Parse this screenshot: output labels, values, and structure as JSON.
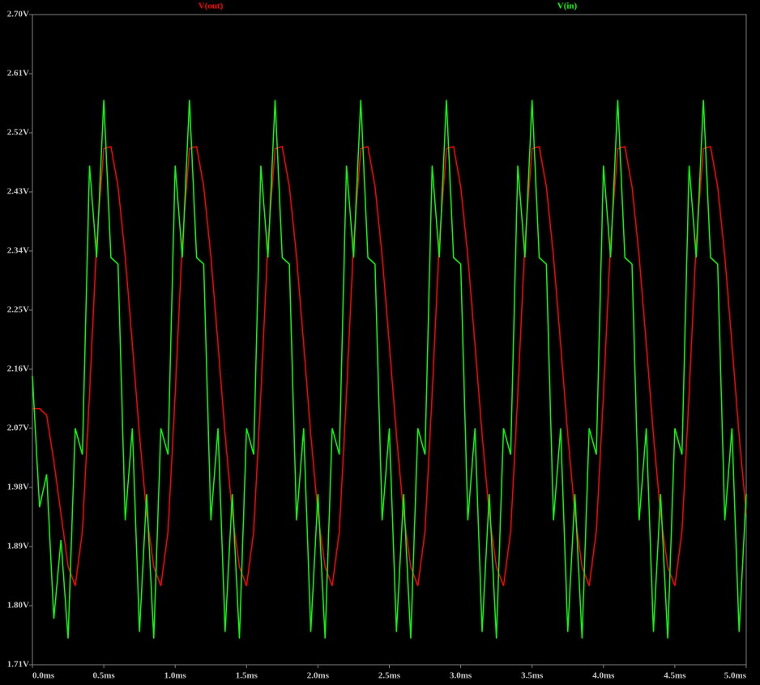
{
  "chart_data": {
    "type": "line",
    "x": [
      0,
      0.05,
      0.1,
      0.15,
      0.2,
      0.25,
      0.3,
      0.35,
      0.4,
      0.45,
      0.5,
      0.55,
      0.6,
      0.65,
      0.7,
      0.75,
      0.8,
      0.85,
      0.9,
      0.95,
      1,
      1.05,
      1.1,
      1.15,
      1.2,
      1.25,
      1.3,
      1.35,
      1.4,
      1.45,
      1.5,
      1.55,
      1.6,
      1.65,
      1.7,
      1.75,
      1.8,
      1.85,
      1.9,
      1.95,
      2,
      2.05,
      2.1,
      2.15,
      2.2,
      2.25,
      2.3,
      2.35,
      2.4,
      2.45,
      2.5,
      2.55,
      2.6,
      2.65,
      2.7,
      2.75,
      2.8,
      2.85,
      2.9,
      2.95,
      3,
      3.05,
      3.1,
      3.15,
      3.2,
      3.25,
      3.3,
      3.35,
      3.4,
      3.45,
      3.5,
      3.55,
      3.6,
      3.65,
      3.7,
      3.75,
      3.8,
      3.85,
      3.9,
      3.95,
      4,
      4.05,
      4.1,
      4.15,
      4.2,
      4.25,
      4.3,
      4.35,
      4.4,
      4.45,
      4.5,
      4.55,
      4.6,
      4.65,
      4.7,
      4.75,
      4.8,
      4.85,
      4.9,
      4.95,
      5
    ],
    "series": [
      {
        "name": "V(out)",
        "color": "#ff0000",
        "values": [
          2.1,
          2.1,
          2.09,
          2.02,
          1.94,
          1.86,
          1.83,
          1.913,
          2.122,
          2.354,
          2.496,
          2.499,
          2.438,
          2.332,
          2.198,
          2.06,
          1.94,
          1.859,
          1.83,
          1.913,
          2.122,
          2.354,
          2.496,
          2.499,
          2.438,
          2.332,
          2.198,
          2.06,
          1.94,
          1.859,
          1.83,
          1.913,
          2.122,
          2.354,
          2.496,
          2.499,
          2.438,
          2.332,
          2.198,
          2.06,
          1.94,
          1.859,
          1.83,
          1.913,
          2.122,
          2.354,
          2.496,
          2.499,
          2.438,
          2.332,
          2.198,
          2.06,
          1.94,
          1.859,
          1.83,
          1.913,
          2.122,
          2.354,
          2.496,
          2.499,
          2.438,
          2.332,
          2.198,
          2.06,
          1.94,
          1.859,
          1.83,
          1.913,
          2.122,
          2.354,
          2.496,
          2.499,
          2.438,
          2.332,
          2.198,
          2.06,
          1.94,
          1.859,
          1.83,
          1.913,
          2.122,
          2.354,
          2.496,
          2.499,
          2.438,
          2.332,
          2.198,
          2.06,
          1.94,
          1.859,
          1.83,
          1.913,
          2.122,
          2.354,
          2.496,
          2.499,
          2.438,
          2.332,
          2.198,
          2.06,
          1.94
        ]
      },
      {
        "name": "V(in)",
        "color": "#00ff00",
        "values": [
          2.15,
          1.95,
          2.0,
          1.78,
          1.9,
          1.75,
          2.07,
          2.03,
          2.47,
          2.33,
          2.57,
          2.33,
          2.32,
          1.93,
          2.07,
          1.76,
          1.97,
          1.75,
          2.07,
          2.03,
          2.47,
          2.33,
          2.57,
          2.33,
          2.32,
          1.93,
          2.07,
          1.76,
          1.97,
          1.75,
          2.07,
          2.03,
          2.47,
          2.33,
          2.57,
          2.33,
          2.32,
          1.93,
          2.07,
          1.76,
          1.97,
          1.75,
          2.07,
          2.03,
          2.47,
          2.33,
          2.57,
          2.33,
          2.32,
          1.93,
          2.07,
          1.76,
          1.97,
          1.75,
          2.07,
          2.03,
          2.47,
          2.33,
          2.57,
          2.33,
          2.32,
          1.93,
          2.07,
          1.76,
          1.97,
          1.75,
          2.07,
          2.03,
          2.47,
          2.33,
          2.57,
          2.33,
          2.32,
          1.93,
          2.07,
          1.76,
          1.97,
          1.75,
          2.07,
          2.03,
          2.47,
          2.33,
          2.57,
          2.33,
          2.32,
          1.93,
          2.07,
          1.76,
          1.97,
          1.75,
          2.07,
          2.03,
          2.47,
          2.33,
          2.57,
          2.33,
          2.32,
          1.93,
          2.07,
          1.76,
          1.97
        ]
      }
    ],
    "xlim": [
      0,
      5
    ],
    "xticks": [
      {
        "value": 0,
        "label": "0.0ms"
      },
      {
        "value": 0.5,
        "label": "0.5ms"
      },
      {
        "value": 1,
        "label": "1.0ms"
      },
      {
        "value": 1.5,
        "label": "1.5ms"
      },
      {
        "value": 2,
        "label": "2.0ms"
      },
      {
        "value": 2.5,
        "label": "2.5ms"
      },
      {
        "value": 3,
        "label": "3.0ms"
      },
      {
        "value": 3.5,
        "label": "3.5ms"
      },
      {
        "value": 4,
        "label": "4.0ms"
      },
      {
        "value": 4.5,
        "label": "4.5ms"
      },
      {
        "value": 5,
        "label": "5.0ms"
      }
    ],
    "ylim": [
      1.71,
      2.7
    ],
    "yticks": [
      {
        "value": 1.71,
        "label": "1.71V"
      },
      {
        "value": 1.8,
        "label": "1.80V"
      },
      {
        "value": 1.89,
        "label": "1.89V"
      },
      {
        "value": 1.98,
        "label": "1.98V"
      },
      {
        "value": 2.07,
        "label": "2.07V"
      },
      {
        "value": 2.16,
        "label": "2.16V"
      },
      {
        "value": 2.25,
        "label": "2.25V"
      },
      {
        "value": 2.34,
        "label": "2.34V"
      },
      {
        "value": 2.43,
        "label": "2.43V"
      },
      {
        "value": 2.52,
        "label": "2.52V"
      },
      {
        "value": 2.61,
        "label": "2.61V"
      },
      {
        "value": 2.7,
        "label": "2.70V"
      }
    ],
    "grid": false
  }
}
